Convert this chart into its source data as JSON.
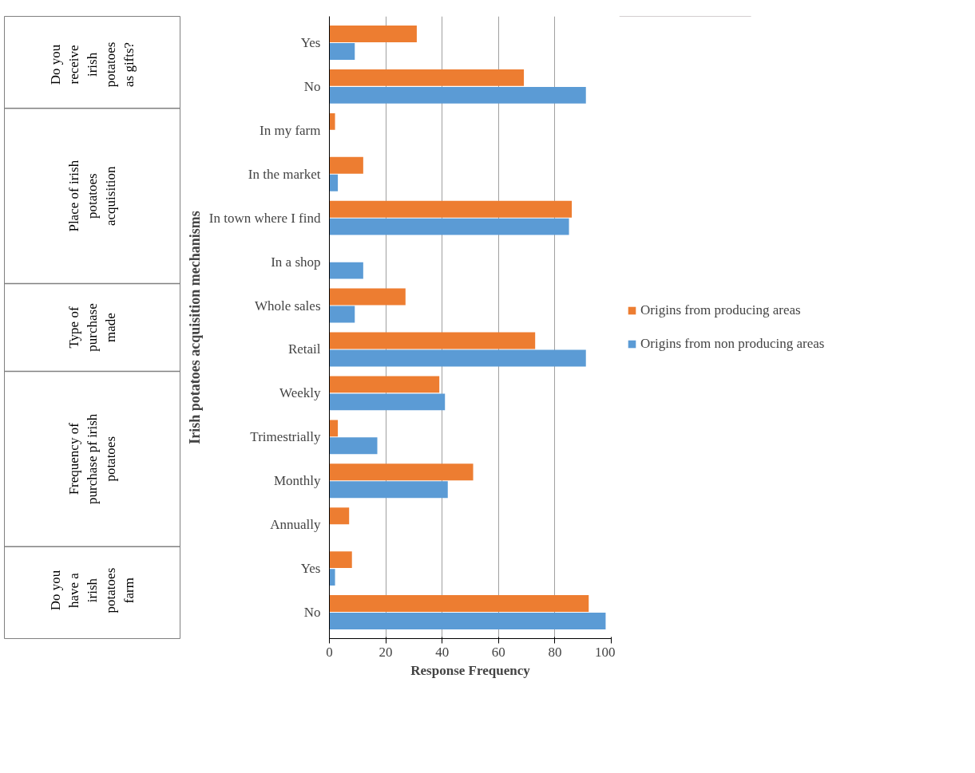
{
  "chart_data": {
    "type": "bar",
    "orientation": "horizontal",
    "ylabel": "Irish potatoes acquisition mechanisms",
    "xlabel": "Response Frequency",
    "categories": [
      "Yes",
      "No",
      "In my farm",
      "In the market",
      "In town where I find",
      "In a shop",
      "Whole sales",
      "Retail",
      "Weekly",
      "Trimestrially",
      "Monthly",
      "Annually",
      "Yes",
      "No"
    ],
    "series": [
      {
        "name": "Origins from producing areas",
        "color": "#ed7d31",
        "values": [
          31,
          69,
          2,
          12,
          86,
          0,
          27,
          73,
          39,
          3,
          51,
          7,
          8,
          92
        ]
      },
      {
        "name": "Origins from non producing areas",
        "color": "#5b9bd5",
        "values": [
          9,
          91,
          0,
          3,
          85,
          12,
          9,
          91,
          41,
          17,
          42,
          0,
          2,
          98
        ]
      }
    ],
    "annotations": [
      "Do you receive irish potatoes as gifts?",
      "Place of irish potatoes acquisition",
      "Type of purchase made",
      "Frequency of purchase pf irish potatoes",
      "Do you have a irish potatoes farm"
    ],
    "xlim": [
      0,
      100
    ],
    "xticks": [
      0,
      20,
      40,
      60,
      80,
      100
    ],
    "grid": "x",
    "legend": "right"
  }
}
